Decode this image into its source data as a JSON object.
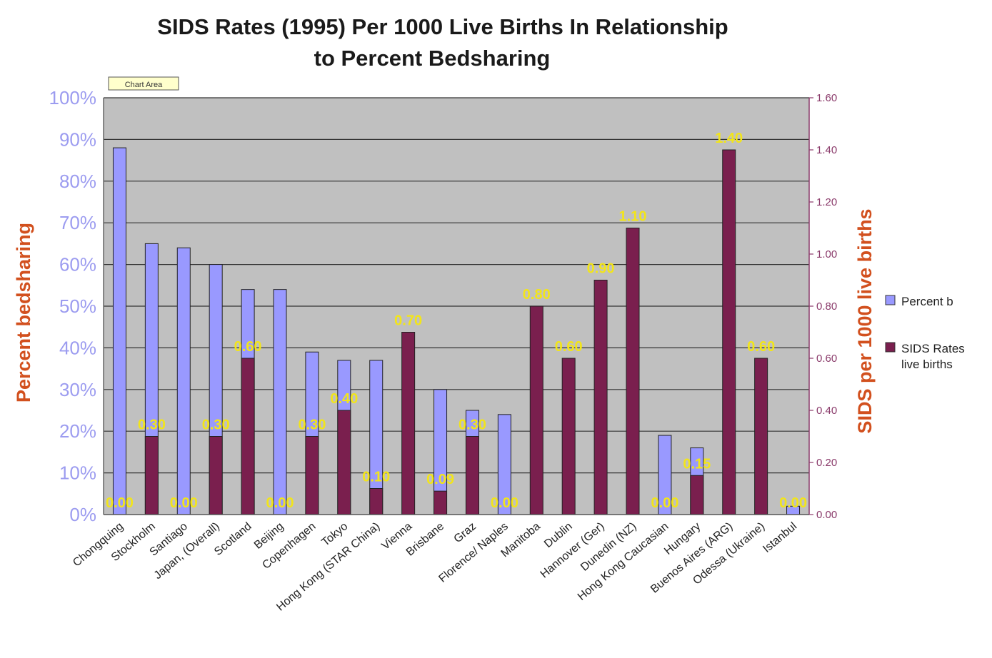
{
  "chart_data": {
    "type": "bar",
    "title": [
      "SIDS Rates (1995) Per 1000 Live Births In Relationship",
      "to Percent Bedsharing"
    ],
    "chart_area_tag": "Chart Area",
    "ylabel_left": "Percent bedsharing",
    "ylabel_right": "SIDS per 1000 live births",
    "ylim_left": [
      0,
      100
    ],
    "ylim_right": [
      0,
      1.6
    ],
    "left_ticks": [
      "0%",
      "10%",
      "20%",
      "30%",
      "40%",
      "50%",
      "60%",
      "70%",
      "80%",
      "90%",
      "100%"
    ],
    "right_ticks": [
      "0.00",
      "0.20",
      "0.40",
      "0.60",
      "0.80",
      "1.00",
      "1.20",
      "1.40",
      "1.60"
    ],
    "categories": [
      "Chongquing",
      "Stockholm",
      "Santiago",
      "Japan, (Overall)",
      "Scotland",
      "Beijing",
      "Copenhagen",
      "Tokyo",
      "Hong Kong (STAR China)",
      "Vienna",
      "Brisbane",
      "Graz",
      "Florence/ Naples",
      "Manitoba",
      "Dublin",
      "Hannover (Ger)",
      "Dunedin (NZ)",
      "Hong Kong Caucasian",
      "Hungary",
      "Buenos Aires (ARG)",
      "Odessa (Ukraine)",
      "Istanbul"
    ],
    "series": [
      {
        "name": "Percent b",
        "axis": "left",
        "color": "#9999ff",
        "values": [
          88,
          65,
          64,
          60,
          54,
          54,
          39,
          37,
          37,
          0,
          30,
          25,
          24,
          0,
          0,
          0,
          0,
          19,
          16,
          0,
          0,
          2
        ]
      },
      {
        "name": "SIDS Rates live births",
        "axis": "right",
        "color": "#7a1f4e",
        "values": [
          0.0,
          0.3,
          0.0,
          0.3,
          0.6,
          0.0,
          0.3,
          0.4,
          0.1,
          0.7,
          0.09,
          0.3,
          0.0,
          0.8,
          0.6,
          0.9,
          1.1,
          0.0,
          0.15,
          1.4,
          0.6,
          0.0
        ]
      }
    ],
    "data_labels": [
      "0.00",
      "0.30",
      "0.00",
      "0.30",
      "0.60",
      "0.00",
      "0.30",
      "0.40",
      "0.10",
      "0.70",
      "0.09",
      "0.30",
      "0.00",
      "0.80",
      "0.60",
      "0.90",
      "1.10",
      "0.00",
      "0.15",
      "1.40",
      "0.60",
      "0.00"
    ],
    "legend": [
      "Percent b",
      "SIDS Rates\nlive births"
    ],
    "legend_position": "right",
    "grid": true,
    "plot_background": "#c0c0c0",
    "gridline_color": "#333333"
  }
}
